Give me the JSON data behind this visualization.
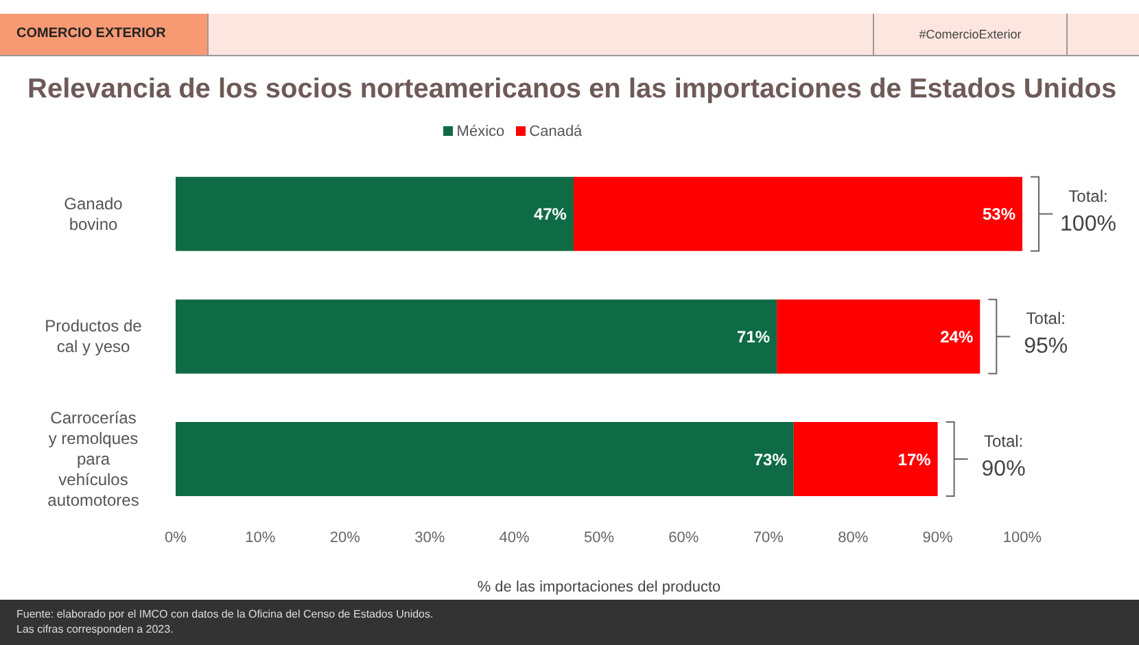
{
  "chart_data": {
    "type": "bar",
    "orientation": "horizontal",
    "stacked": true,
    "title": "Relevancia de los socios norteamericanos en las importaciones de Estados Unidos",
    "xlabel": "% de las importaciones del producto",
    "categories": [
      "Ganado bovino",
      "Productos de cal y yeso",
      "Carrocerías y remolques para vehículos automotores"
    ],
    "series": [
      {
        "name": "México",
        "color": "#0e6b45",
        "values": [
          47,
          71,
          73
        ],
        "value_labels": [
          "47%",
          "71%",
          "73%"
        ]
      },
      {
        "name": "Canadá",
        "color": "#ff0000",
        "values": [
          53,
          24,
          17
        ],
        "value_labels": [
          "53%",
          "24%",
          "17%"
        ]
      }
    ],
    "totals": [
      "Total: 100%",
      "Total: 95%",
      "Total: 90%"
    ],
    "xlim": [
      0,
      100
    ],
    "xticks": [
      {
        "value": 0,
        "label": "0%"
      },
      {
        "value": 10,
        "label": "10%"
      },
      {
        "value": 20,
        "label": "20%"
      },
      {
        "value": 30,
        "label": "30%"
      },
      {
        "value": 40,
        "label": "40%"
      },
      {
        "value": 50,
        "label": "50%"
      },
      {
        "value": 60,
        "label": "60%"
      },
      {
        "value": 70,
        "label": "70%"
      },
      {
        "value": 80,
        "label": "80%"
      },
      {
        "value": 90,
        "label": "90%"
      },
      {
        "value": 100,
        "label": "100%"
      }
    ],
    "legend": "top",
    "grid": false,
    "annotations": [
      "COMERCIO EXTERIOR",
      "#ComercioExterior",
      "Fuente: elaborado por el IMCO con datos de la Oficina del Censo de Estados Unidos.",
      "Las cifras corresponden a 2023."
    ]
  }
}
